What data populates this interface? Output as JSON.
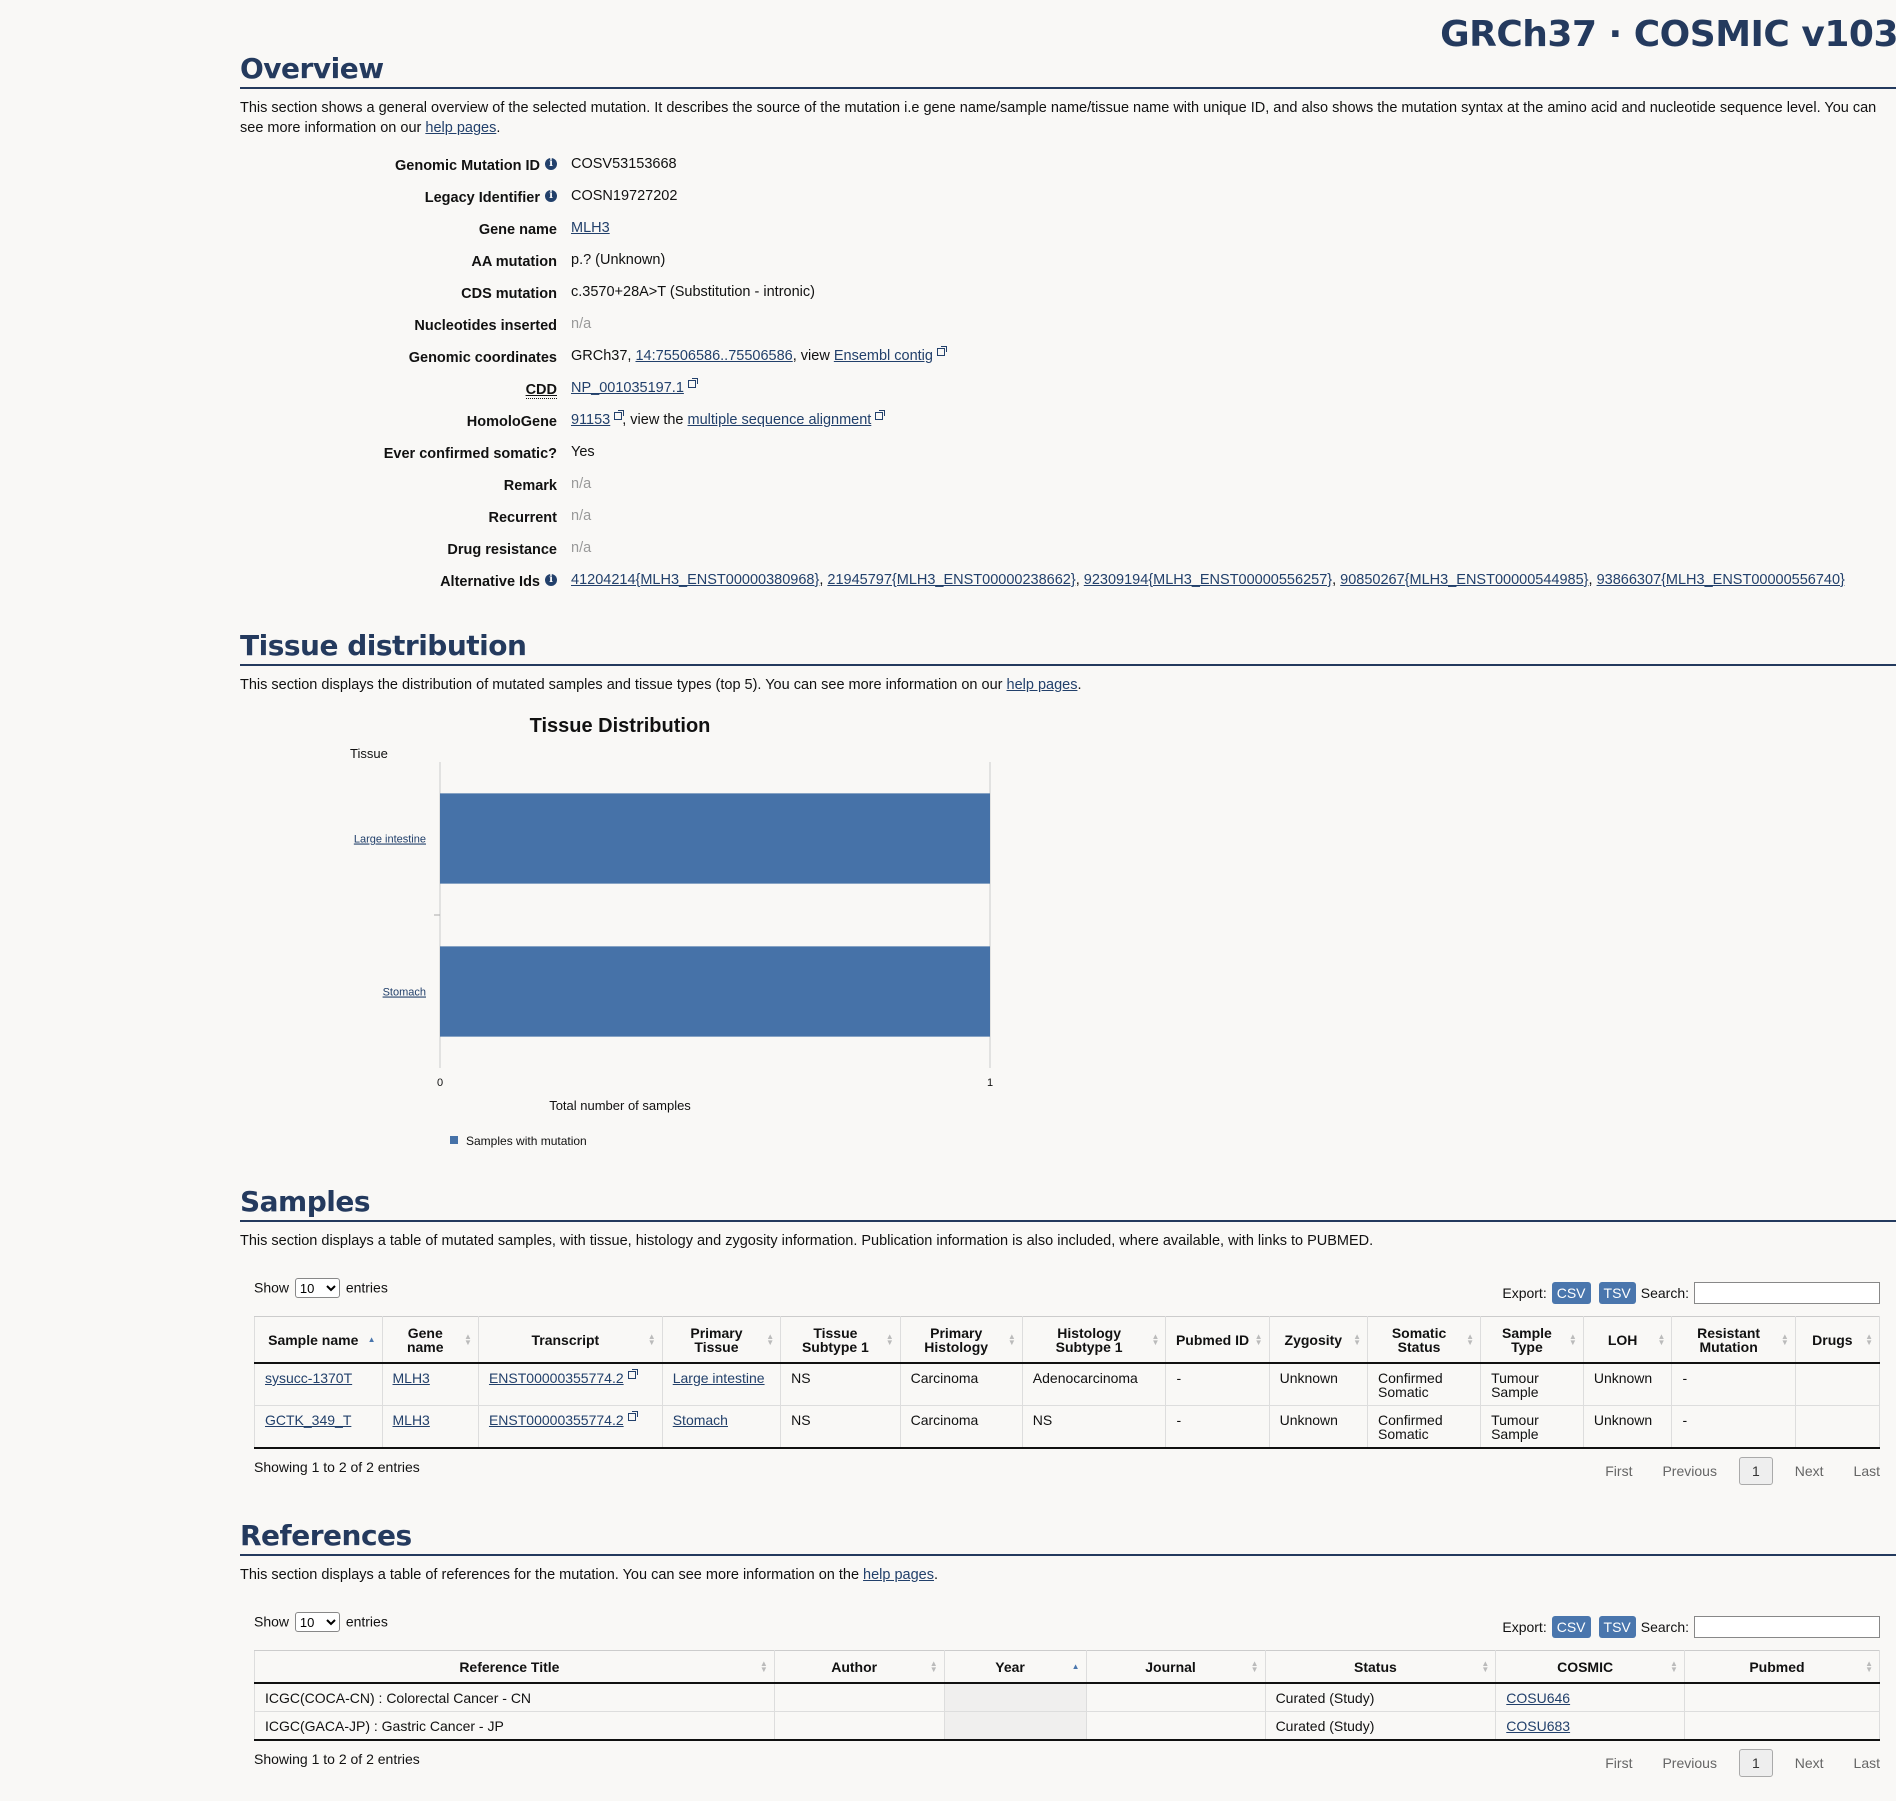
{
  "header": {
    "title": "GRCh37 · COSMIC v103"
  },
  "overview": {
    "title": "Overview",
    "desc_text": "This section shows a general overview of the selected mutation. It describes the source of the mutation i.e gene name/sample name/tissue name with unique ID, and also shows the mutation syntax at the amino acid and nucleotide sequence level. You can see more information on our ",
    "desc_link": "help pages",
    "desc_end": ".",
    "fields": {
      "genomic_mutation_id": {
        "label": "Genomic Mutation ID",
        "value": "COSV53153668"
      },
      "legacy_identifier": {
        "label": "Legacy Identifier",
        "value": "COSN19727202"
      },
      "gene_name": {
        "label": "Gene name",
        "value": "MLH3"
      },
      "aa_mutation": {
        "label": "AA mutation",
        "value": "p.? (Unknown)"
      },
      "cds_mutation": {
        "label": "CDS mutation",
        "value": "c.3570+28A>T (Substitution - intronic)"
      },
      "nucleotides_inserted": {
        "label": "Nucleotides inserted",
        "value": "n/a"
      },
      "genomic_coordinates": {
        "label": "Genomic coordinates",
        "prefix": "GRCh37, ",
        "coords": "14:75506586..75506586",
        "mid": ", view ",
        "link": "Ensembl contig"
      },
      "cdd": {
        "label": "CDD",
        "value": "NP_001035197.1"
      },
      "homologene": {
        "label": "HomoloGene",
        "value": "91153",
        "mid": ", view the ",
        "link": "multiple sequence alignment"
      },
      "ever_confirmed": {
        "label": "Ever confirmed somatic?",
        "value": "Yes"
      },
      "remark": {
        "label": "Remark",
        "value": "n/a"
      },
      "recurrent": {
        "label": "Recurrent",
        "value": "n/a"
      },
      "drug_resistance": {
        "label": "Drug resistance",
        "value": "n/a"
      },
      "alternative_ids": {
        "label": "Alternative Ids",
        "values": [
          "41204214{MLH3_ENST00000380968}",
          "21945797{MLH3_ENST00000238662}",
          "92309194{MLH3_ENST00000556257}",
          "90850267{MLH3_ENST00000544985}",
          "93866307{MLH3_ENST00000556740}"
        ]
      }
    }
  },
  "tissue": {
    "title": "Tissue distribution",
    "desc_text": "This section displays the distribution of mutated samples and tissue types (top 5). You can see more information on our ",
    "desc_link": "help pages",
    "desc_end": "."
  },
  "chart_data": {
    "type": "bar",
    "orientation": "horizontal",
    "title": "Tissue Distribution",
    "ylabel": "Tissue",
    "xlabel": "Total number of samples",
    "categories": [
      "Large intestine",
      "Stomach"
    ],
    "series": [
      {
        "name": "Samples with mutation",
        "values": [
          1,
          1
        ]
      }
    ],
    "xlim": [
      0,
      1
    ],
    "xticks": [
      "0",
      "1"
    ],
    "legend": "bottom-left",
    "color": "#4672a8"
  },
  "samples": {
    "title": "Samples",
    "desc": "This section displays a table of mutated samples, with tissue, histology and zygosity information. Publication information is also included, where available, with links to PUBMED.",
    "show_label": "Show",
    "entries_label": "entries",
    "page_size": "10",
    "export_label": "Export:",
    "csv": "CSV",
    "tsv": "TSV",
    "search_label": "Search:",
    "columns": [
      "Sample name",
      "Gene name",
      "Transcript",
      "Primary Tissue",
      "Tissue Subtype 1",
      "Primary Histology",
      "Histology Subtype 1",
      "Pubmed ID",
      "Zygosity",
      "Somatic Status",
      "Sample Type",
      "LOH",
      "Resistant Mutation",
      "Drugs"
    ],
    "rows": [
      [
        "sysucc-1370T",
        "MLH3",
        "ENST00000355774.2",
        "Large intestine",
        "NS",
        "Carcinoma",
        "Adenocarcinoma",
        "-",
        "Unknown",
        "Confirmed Somatic",
        "Tumour Sample",
        "Unknown",
        "-",
        ""
      ],
      [
        "GCTK_349_T",
        "MLH3",
        "ENST00000355774.2",
        "Stomach",
        "NS",
        "Carcinoma",
        "NS",
        "-",
        "Unknown",
        "Confirmed Somatic",
        "Tumour Sample",
        "Unknown",
        "-",
        ""
      ]
    ],
    "info": "Showing 1 to 2 of 2 entries",
    "pagination": {
      "first": "First",
      "previous": "Previous",
      "current": "1",
      "next": "Next",
      "last": "Last"
    }
  },
  "references": {
    "title": "References",
    "desc_text": "This section displays a table of references for the mutation. You can see more information on the ",
    "desc_link": "help pages",
    "desc_end": ".",
    "show_label": "Show",
    "entries_label": "entries",
    "page_size": "10",
    "export_label": "Export:",
    "csv": "CSV",
    "tsv": "TSV",
    "search_label": "Search:",
    "columns": [
      "Reference Title",
      "Author",
      "Year",
      "Journal",
      "Status",
      "COSMIC",
      "Pubmed"
    ],
    "rows": [
      [
        "ICGC(COCA-CN) : Colorectal Cancer - CN",
        "",
        "",
        "",
        "Curated (Study)",
        "COSU646",
        ""
      ],
      [
        "ICGC(GACA-JP) : Gastric Cancer - JP",
        "",
        "",
        "",
        "Curated (Study)",
        "COSU683",
        ""
      ]
    ],
    "info": "Showing 1 to 2 of 2 entries",
    "pagination": {
      "first": "First",
      "previous": "Previous",
      "current": "1",
      "next": "Next",
      "last": "Last"
    }
  }
}
